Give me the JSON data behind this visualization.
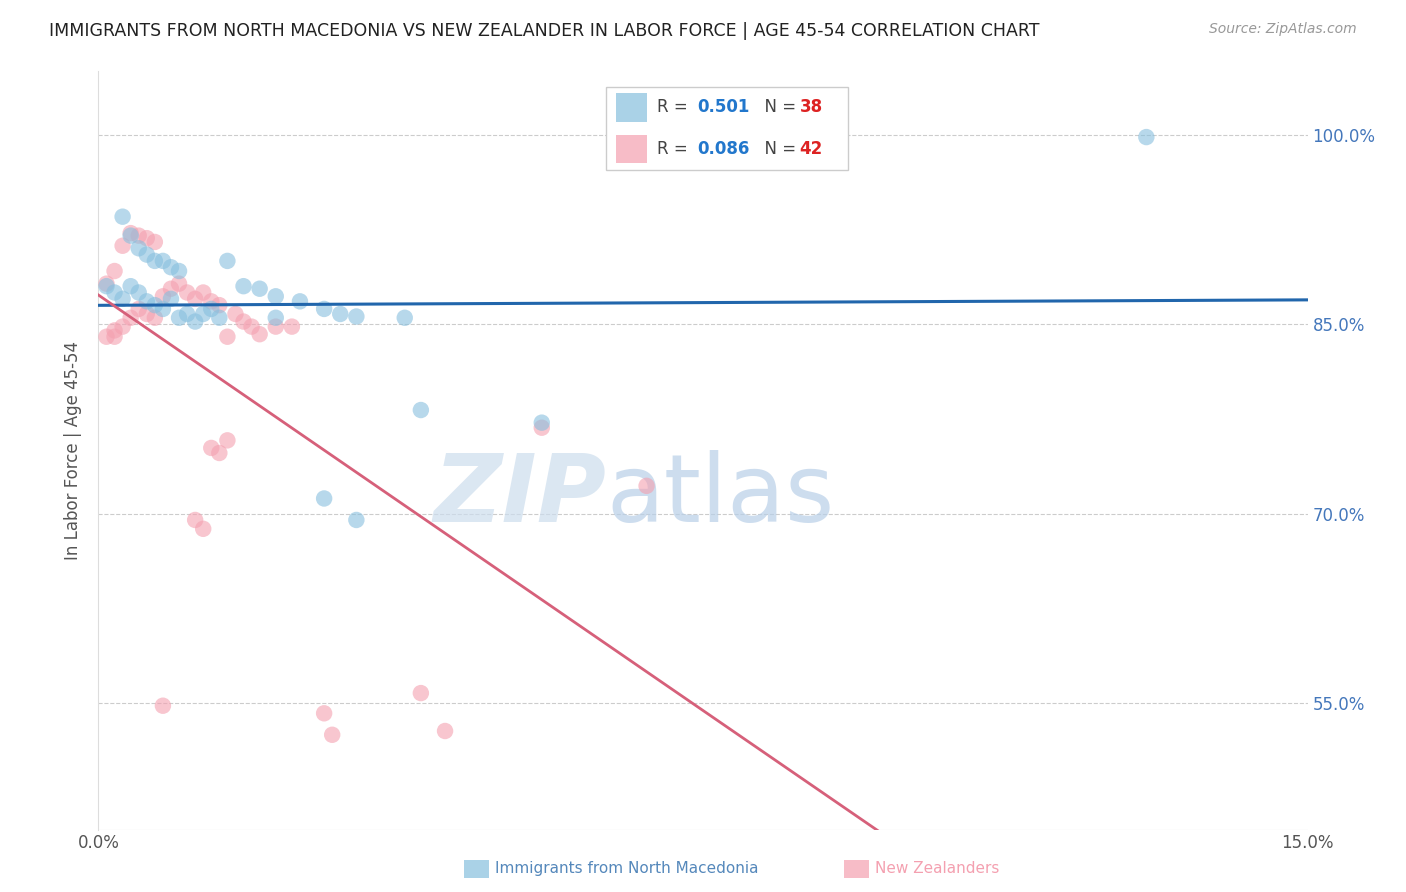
{
  "title": "IMMIGRANTS FROM NORTH MACEDONIA VS NEW ZEALANDER IN LABOR FORCE | AGE 45-54 CORRELATION CHART",
  "source": "Source: ZipAtlas.com",
  "ylabel": "In Labor Force | Age 45-54",
  "xlabel_blue": "Immigrants from North Macedonia",
  "xlabel_pink": "New Zealanders",
  "xlim": [
    0.0,
    0.15
  ],
  "ylim": [
    0.45,
    1.05
  ],
  "ytick_vals": [
    0.55,
    0.7,
    0.85,
    1.0
  ],
  "ytick_labels": [
    "55.0%",
    "70.0%",
    "85.0%",
    "100.0%"
  ],
  "xtick_vals": [
    0.0,
    0.025,
    0.05,
    0.075,
    0.1,
    0.125,
    0.15
  ],
  "xtick_labels": [
    "0.0%",
    "",
    "",
    "",
    "",
    "",
    "15.0%"
  ],
  "legend_blue_R": "0.501",
  "legend_blue_N": "38",
  "legend_pink_R": "0.086",
  "legend_pink_N": "42",
  "blue_color": "#87BFDE",
  "pink_color": "#F4A0B0",
  "line_blue": "#2166ac",
  "line_pink": "#d6607a",
  "blue_scatter": [
    [
      0.001,
      0.88
    ],
    [
      0.002,
      0.875
    ],
    [
      0.003,
      0.87
    ],
    [
      0.004,
      0.88
    ],
    [
      0.005,
      0.875
    ],
    [
      0.006,
      0.868
    ],
    [
      0.007,
      0.865
    ],
    [
      0.008,
      0.862
    ],
    [
      0.009,
      0.87
    ],
    [
      0.01,
      0.855
    ],
    [
      0.011,
      0.858
    ],
    [
      0.012,
      0.852
    ],
    [
      0.013,
      0.858
    ],
    [
      0.014,
      0.862
    ],
    [
      0.015,
      0.855
    ],
    [
      0.003,
      0.935
    ],
    [
      0.004,
      0.92
    ],
    [
      0.005,
      0.91
    ],
    [
      0.006,
      0.905
    ],
    [
      0.007,
      0.9
    ],
    [
      0.008,
      0.9
    ],
    [
      0.009,
      0.895
    ],
    [
      0.01,
      0.892
    ],
    [
      0.016,
      0.9
    ],
    [
      0.018,
      0.88
    ],
    [
      0.02,
      0.878
    ],
    [
      0.022,
      0.872
    ],
    [
      0.025,
      0.868
    ],
    [
      0.028,
      0.862
    ],
    [
      0.03,
      0.858
    ],
    [
      0.032,
      0.856
    ],
    [
      0.038,
      0.855
    ],
    [
      0.022,
      0.855
    ],
    [
      0.04,
      0.782
    ],
    [
      0.028,
      0.712
    ],
    [
      0.032,
      0.695
    ],
    [
      0.055,
      0.772
    ],
    [
      0.13,
      0.998
    ]
  ],
  "pink_scatter": [
    [
      0.001,
      0.84
    ],
    [
      0.002,
      0.845
    ],
    [
      0.003,
      0.848
    ],
    [
      0.004,
      0.855
    ],
    [
      0.005,
      0.862
    ],
    [
      0.006,
      0.858
    ],
    [
      0.007,
      0.855
    ],
    [
      0.008,
      0.872
    ],
    [
      0.009,
      0.878
    ],
    [
      0.01,
      0.882
    ],
    [
      0.011,
      0.875
    ],
    [
      0.012,
      0.87
    ],
    [
      0.013,
      0.875
    ],
    [
      0.014,
      0.868
    ],
    [
      0.015,
      0.865
    ],
    [
      0.016,
      0.84
    ],
    [
      0.017,
      0.858
    ],
    [
      0.018,
      0.852
    ],
    [
      0.019,
      0.848
    ],
    [
      0.02,
      0.842
    ],
    [
      0.001,
      0.882
    ],
    [
      0.002,
      0.892
    ],
    [
      0.003,
      0.912
    ],
    [
      0.004,
      0.922
    ],
    [
      0.005,
      0.92
    ],
    [
      0.006,
      0.918
    ],
    [
      0.022,
      0.848
    ],
    [
      0.024,
      0.848
    ],
    [
      0.014,
      0.752
    ],
    [
      0.015,
      0.748
    ],
    [
      0.016,
      0.758
    ],
    [
      0.012,
      0.695
    ],
    [
      0.013,
      0.688
    ],
    [
      0.055,
      0.768
    ],
    [
      0.068,
      0.722
    ],
    [
      0.04,
      0.558
    ],
    [
      0.043,
      0.528
    ],
    [
      0.028,
      0.542
    ],
    [
      0.029,
      0.525
    ],
    [
      0.008,
      0.548
    ],
    [
      0.007,
      0.915
    ],
    [
      0.002,
      0.84
    ]
  ],
  "watermark_zip": "ZIP",
  "watermark_atlas": "atlas",
  "background_color": "#ffffff",
  "grid_color": "#cccccc"
}
